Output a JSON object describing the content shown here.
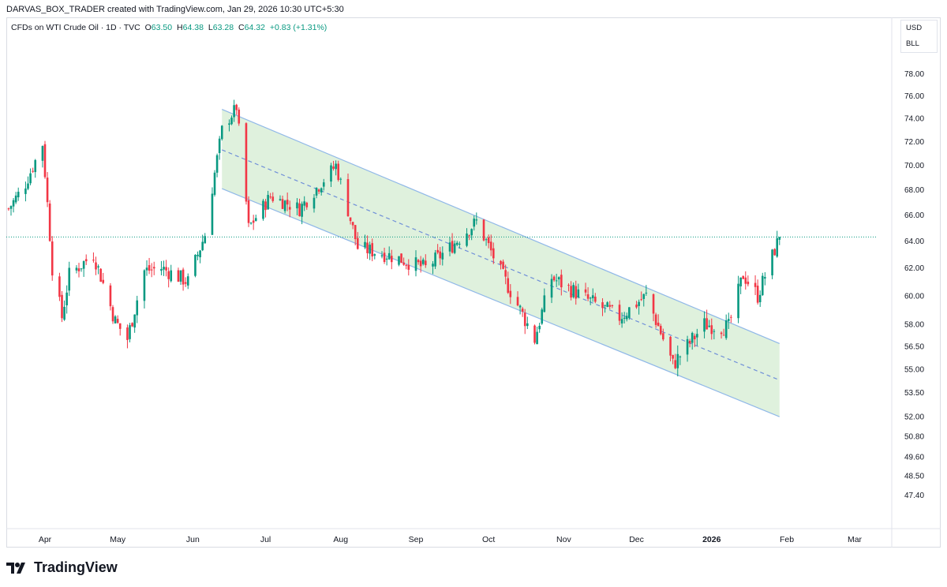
{
  "credit": "DARVAS_BOX_TRADER created with TradingView.com, Jan 29, 2026 10:30 UTC+5:30",
  "legend": {
    "symbol": "CFDs on WTI Crude Oil · 1D · TVC",
    "o_label": "O",
    "o_value": "63.50",
    "h_label": "H",
    "h_value": "64.38",
    "l_label": "L",
    "l_value": "63.28",
    "c_label": "C",
    "c_value": "64.32",
    "change": "+0.83 (+1.31%)"
  },
  "units": [
    "USD",
    "BLL"
  ],
  "brand": "TradingView",
  "colors": {
    "up": "#089981",
    "down": "#f23645",
    "channel_fill": "#d9efd7",
    "channel_line": "#90b8e8",
    "last_price": "#089981"
  },
  "chart_data": {
    "type": "candlestick",
    "symbol": "CFDs on WTI Crude Oil",
    "interval": "1D",
    "x_axis_labels": [
      "Apr",
      "May",
      "Jun",
      "Jul",
      "Aug",
      "Sep",
      "Oct",
      "Nov",
      "Dec",
      "2026",
      "Feb",
      "Mar"
    ],
    "y_axis_labels": [
      "78.00",
      "76.00",
      "74.00",
      "72.00",
      "70.00",
      "68.00",
      "66.00",
      "64.00",
      "62.00",
      "60.00",
      "58.00",
      "56.50",
      "55.00",
      "53.50",
      "52.00",
      "50.80",
      "49.60",
      "48.50",
      "47.40"
    ],
    "y_scale": "log",
    "y_range": [
      46.5,
      79
    ],
    "last_price": 64.32,
    "last_date": "2026-01-29",
    "channel": {
      "upper": [
        {
          "date": "2025-06-13",
          "price": 74.8
        },
        {
          "date": "2026-01-29",
          "price": 56.7
        }
      ],
      "middle": [
        {
          "date": "2025-06-13",
          "price": 71.3
        },
        {
          "date": "2026-01-29",
          "price": 54.3
        }
      ],
      "lower": [
        {
          "date": "2025-06-13",
          "price": 68.1
        },
        {
          "date": "2026-01-29",
          "price": 52.0
        }
      ]
    },
    "closes": [
      {
        "date": "2025-03-17",
        "close": 66.5
      },
      {
        "date": "2025-03-24",
        "close": 68.5
      },
      {
        "date": "2025-03-31",
        "close": 71.8
      },
      {
        "date": "2025-04-04",
        "close": 62.0
      },
      {
        "date": "2025-04-08",
        "close": 58.5
      },
      {
        "date": "2025-04-11",
        "close": 61.5
      },
      {
        "date": "2025-04-21",
        "close": 63.0
      },
      {
        "date": "2025-04-30",
        "close": 58.2
      },
      {
        "date": "2025-05-05",
        "close": 57.0
      },
      {
        "date": "2025-05-12",
        "close": 61.8
      },
      {
        "date": "2025-05-19",
        "close": 62.0
      },
      {
        "date": "2025-05-30",
        "close": 61.0
      },
      {
        "date": "2025-06-06",
        "close": 64.5
      },
      {
        "date": "2025-06-13",
        "close": 73.0
      },
      {
        "date": "2025-06-19",
        "close": 75.0
      },
      {
        "date": "2025-06-24",
        "close": 65.0
      },
      {
        "date": "2025-07-03",
        "close": 67.5
      },
      {
        "date": "2025-07-15",
        "close": 66.5
      },
      {
        "date": "2025-07-30",
        "close": 70.0
      },
      {
        "date": "2025-08-08",
        "close": 63.5
      },
      {
        "date": "2025-08-20",
        "close": 63.0
      },
      {
        "date": "2025-09-05",
        "close": 62.0
      },
      {
        "date": "2025-09-15",
        "close": 63.5
      },
      {
        "date": "2025-09-26",
        "close": 65.5
      },
      {
        "date": "2025-10-06",
        "close": 61.7
      },
      {
        "date": "2025-10-20",
        "close": 57.0
      },
      {
        "date": "2025-10-27",
        "close": 61.3
      },
      {
        "date": "2025-11-10",
        "close": 59.8
      },
      {
        "date": "2025-11-24",
        "close": 58.5
      },
      {
        "date": "2025-12-05",
        "close": 60.0
      },
      {
        "date": "2025-12-16",
        "close": 55.3
      },
      {
        "date": "2025-12-29",
        "close": 58.0
      },
      {
        "date": "2026-01-08",
        "close": 57.8
      },
      {
        "date": "2026-01-14",
        "close": 61.5
      },
      {
        "date": "2026-01-20",
        "close": 60.0
      },
      {
        "date": "2026-01-29",
        "close": 64.32
      }
    ]
  }
}
